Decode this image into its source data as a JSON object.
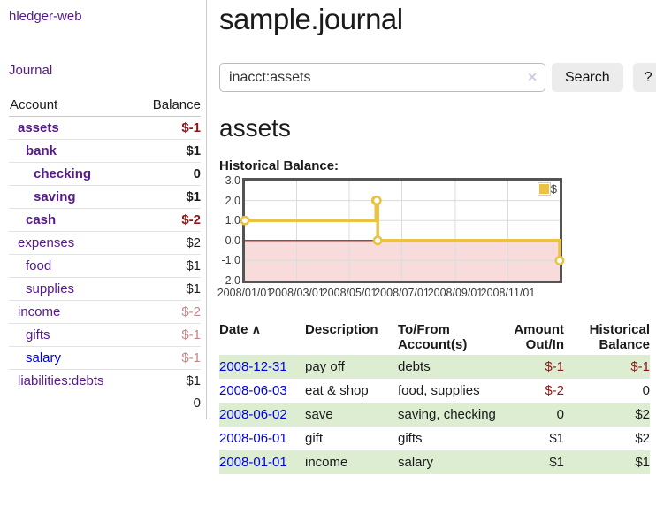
{
  "sidebar": {
    "app_title": "hledger-web",
    "nav_journal": "Journal",
    "accounts_table": {
      "headers": {
        "account": "Account",
        "balance": "Balance"
      },
      "rows": [
        {
          "name": "assets",
          "depth": 1,
          "bold": true,
          "name_color": "purple",
          "balance": "$-1",
          "balance_color": "neg-strong"
        },
        {
          "name": "bank",
          "depth": 2,
          "bold": true,
          "name_color": "purple",
          "balance": "$1",
          "balance_color": ""
        },
        {
          "name": "checking",
          "depth": 3,
          "bold": true,
          "name_color": "purple",
          "balance": "0",
          "balance_color": ""
        },
        {
          "name": "saving",
          "depth": 3,
          "bold": true,
          "name_color": "purple",
          "balance": "$1",
          "balance_color": ""
        },
        {
          "name": "cash",
          "depth": 2,
          "bold": true,
          "name_color": "purple",
          "balance": "$-2",
          "balance_color": "neg-strong"
        },
        {
          "name": "expenses",
          "depth": 1,
          "bold": false,
          "name_color": "purple",
          "balance": "$2",
          "balance_color": ""
        },
        {
          "name": "food",
          "depth": 2,
          "bold": false,
          "name_color": "purple",
          "balance": "$1",
          "balance_color": ""
        },
        {
          "name": "supplies",
          "depth": 2,
          "bold": false,
          "name_color": "purple",
          "balance": "$1",
          "balance_color": ""
        },
        {
          "name": "income",
          "depth": 1,
          "bold": false,
          "name_color": "purple",
          "balance": "$-2",
          "balance_color": "neg-soft"
        },
        {
          "name": "gifts",
          "depth": 2,
          "bold": false,
          "name_color": "purple",
          "balance": "$-1",
          "balance_color": "neg-soft"
        },
        {
          "name": "salary",
          "depth": 2,
          "bold": false,
          "name_color": "blue",
          "balance": "$-1",
          "balance_color": "neg-soft"
        },
        {
          "name": "liabilities:debts",
          "depth": 1,
          "bold": false,
          "name_color": "purple",
          "balance": "$1",
          "balance_color": ""
        }
      ],
      "total": "0"
    }
  },
  "main": {
    "title": "sample.journal",
    "search": {
      "value": "inacct:assets",
      "clear_icon": "✕",
      "button_label": "Search",
      "help_label": "?"
    },
    "account_heading": "assets",
    "chart_label": "Historical Balance:"
  },
  "chart_data": {
    "type": "line",
    "title": "Historical Balance:",
    "series": [
      {
        "name": "$",
        "color": "#e9c341",
        "step": true,
        "points": [
          [
            "2008-01-01",
            1
          ],
          [
            "2008-06-01",
            2
          ],
          [
            "2008-06-02",
            2
          ],
          [
            "2008-06-03",
            0
          ],
          [
            "2008-12-31",
            -1
          ]
        ]
      }
    ],
    "xlim": [
      "2008-01-01",
      "2008-12-31"
    ],
    "ylim": [
      -2,
      3
    ],
    "y_ticks": [
      "3.0",
      "2.0",
      "1.0",
      "0.0",
      "-1.0",
      "-2.0"
    ],
    "x_ticks": [
      "2008/01/01",
      "2008/03/01",
      "2008/05/01",
      "2008/07/01",
      "2008/09/01",
      "2008/11/01"
    ],
    "grid": true,
    "grid_color": "#dcdcdc",
    "border_color": "#545454",
    "negative_region_color": "#f8dbdb",
    "zero_line_color": "#a40000",
    "legend_position": "top-right"
  },
  "transactions": {
    "headers": {
      "date": "Date",
      "sort_icon": "∧",
      "description": "Description",
      "tofrom": "To/From Account(s)",
      "amount": "Amount Out/In",
      "balance": "Historical Balance"
    },
    "rows": [
      {
        "date": "2008-12-31",
        "description": "pay off",
        "accounts": "debts",
        "amount": "$-1",
        "balance": "$-1"
      },
      {
        "date": "2008-06-03",
        "description": "eat & shop",
        "accounts": "food, supplies",
        "amount": "$-2",
        "balance": "0"
      },
      {
        "date": "2008-06-02",
        "description": "save",
        "accounts": "saving, checking",
        "amount": "0",
        "balance": "$2"
      },
      {
        "date": "2008-06-01",
        "description": "gift",
        "accounts": "gifts",
        "amount": "$1",
        "balance": "$2"
      },
      {
        "date": "2008-01-01",
        "description": "income",
        "accounts": "salary",
        "amount": "$1",
        "balance": "$1"
      }
    ]
  }
}
